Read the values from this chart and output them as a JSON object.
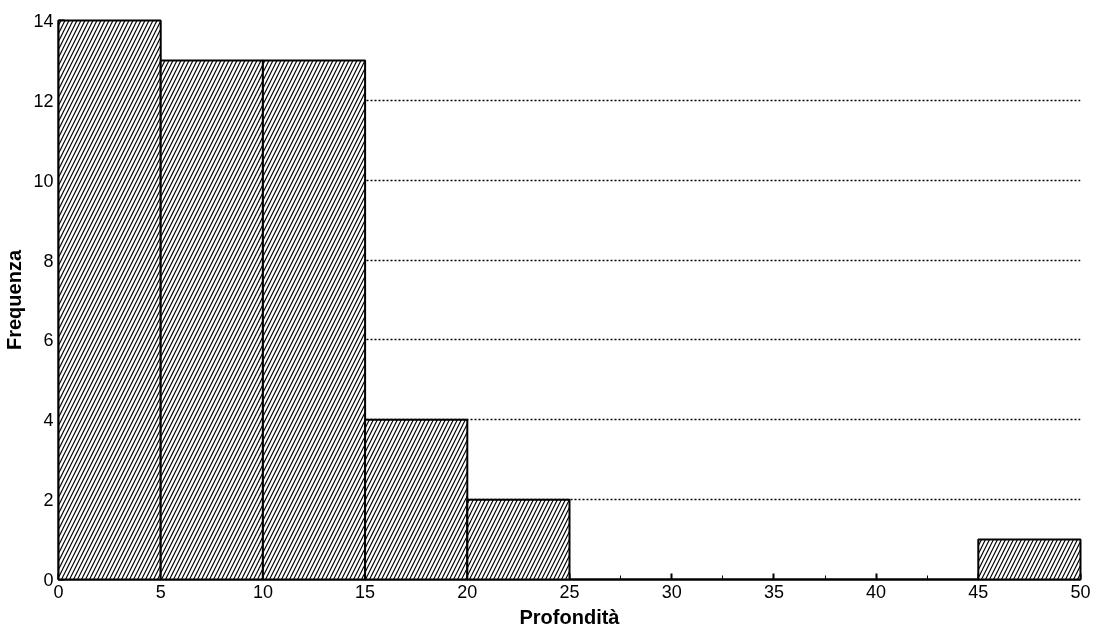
{
  "chart_data": {
    "type": "histogram",
    "xlabel": "Profondità",
    "ylabel": "Frequenza",
    "bins": [
      0,
      5,
      10,
      15,
      20,
      25,
      30,
      35,
      40,
      45,
      50
    ],
    "values": [
      14,
      13,
      13,
      4,
      2,
      0,
      0,
      0,
      0,
      1
    ],
    "color": "#000000",
    "xlim": [
      0,
      50
    ],
    "xticks": [
      0,
      5,
      10,
      15,
      20,
      25,
      30,
      35,
      40,
      45,
      50
    ],
    "ylim": [
      0,
      14
    ],
    "yticks": [
      0,
      2,
      4,
      6,
      8,
      10,
      12,
      14
    ],
    "grid": "y"
  }
}
